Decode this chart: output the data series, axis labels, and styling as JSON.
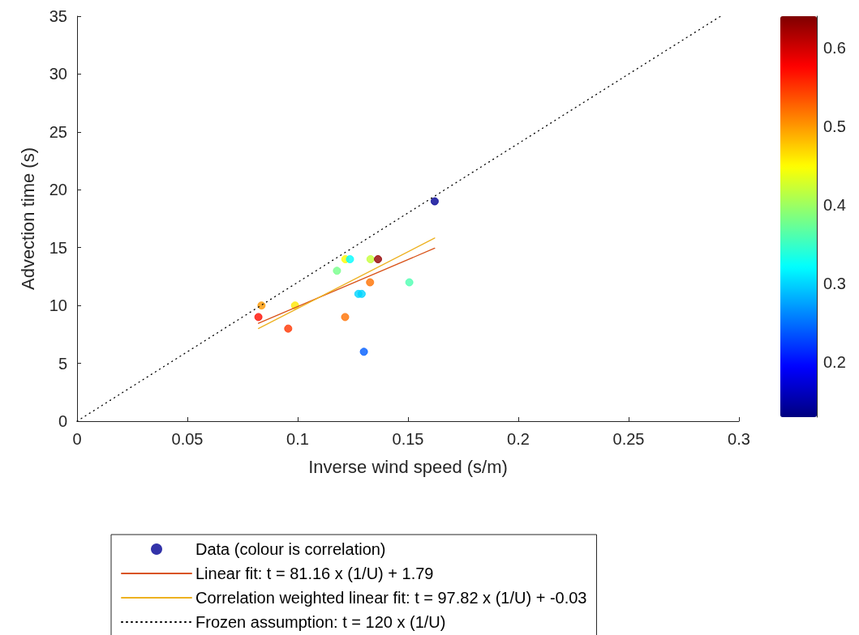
{
  "chart_data": {
    "type": "scatter",
    "xlabel": "Inverse wind speed (s/m)",
    "ylabel": "Advection time (s)",
    "xlim": [
      0,
      0.3
    ],
    "xticks": [
      0,
      0.05,
      0.1,
      0.15,
      0.2,
      0.25,
      0.3
    ],
    "ylim": [
      0,
      35
    ],
    "yticks": [
      0,
      5,
      10,
      15,
      20,
      25,
      30,
      35
    ],
    "clim": [
      0.13,
      0.64
    ],
    "cticks": [
      0.2,
      0.3,
      0.4,
      0.5,
      0.6
    ],
    "grid": false,
    "legend": "bottom",
    "series": [
      {
        "name": "Data (colour is correlation)",
        "type": "scatter",
        "marker": "circle",
        "colors": [
          "#000093",
          "#fffc00",
          "#00fcff",
          "#c5ff39",
          "#930000",
          "#75ff89",
          "#ff7000",
          "#4dffb1",
          "#00d5ff",
          "#00d5ff",
          "#ff9900",
          "#ffe800",
          "#ff0d00",
          "#ff7000",
          "#ff3400",
          "#005dff"
        ],
        "x": [
          0.1621,
          0.1216,
          0.1237,
          0.133,
          0.1364,
          0.1178,
          0.1328,
          0.1506,
          0.1275,
          0.129,
          0.0836,
          0.0988,
          0.0822,
          0.1215,
          0.0957,
          0.13
        ],
        "values": [
          19,
          14,
          14,
          14,
          14,
          13,
          12,
          12,
          11,
          11,
          10,
          10,
          9,
          9,
          8,
          6
        ],
        "cvalues": [
          0.14,
          0.45,
          0.32,
          0.42,
          0.63,
          0.38,
          0.52,
          0.36,
          0.3,
          0.3,
          0.5,
          0.46,
          0.57,
          0.52,
          0.55,
          0.24
        ]
      },
      {
        "name": "Linear fit: t = 81.16 x (1/U) + 1.79",
        "type": "line",
        "marker": "none",
        "line_style": "solid",
        "color": "#d95319",
        "x": [
          0.0822,
          0.1621
        ],
        "values": [
          8.46,
          14.95
        ]
      },
      {
        "name": "Correlation weighted linear fit: t = 97.82 x (1/U) + -0.03",
        "type": "line",
        "marker": "none",
        "line_style": "solid",
        "color": "#edb120",
        "x": [
          0.0822,
          0.1621
        ],
        "values": [
          8.01,
          15.83
        ]
      },
      {
        "name": "Frozen assumption: t = 120 x (1/U)",
        "type": "line",
        "marker": "none",
        "line_style": "dotted",
        "color": "#000000",
        "x": [
          0,
          0.2917
        ],
        "values": [
          0,
          35
        ]
      }
    ]
  }
}
